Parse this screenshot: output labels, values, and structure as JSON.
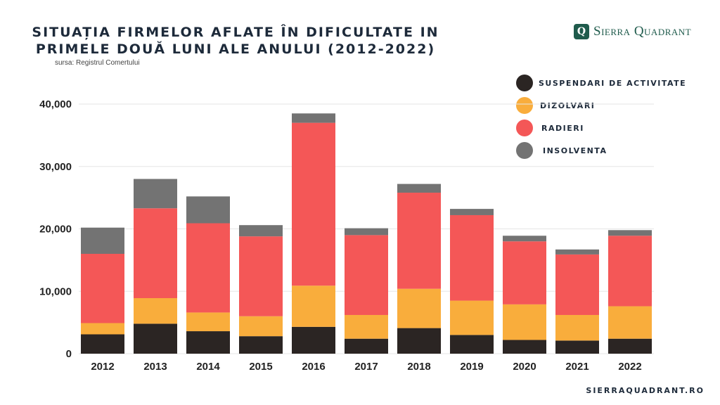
{
  "header": {
    "title_line1": "SITUAȚIA FIRMELOR AFLATE ÎN DIFICULTATE IN",
    "title_line2": "PRIMELE DOUĂ LUNI ALE ANULUI (2012-2022)",
    "source": "sursa: Registrul Comertului"
  },
  "brand": {
    "logo_text": "Sierra Quadrant",
    "logo_mark": "Q",
    "website": "SIERRAQUADRANT.RO",
    "color": "#1f5b4c"
  },
  "chart_data": {
    "type": "bar",
    "stacked": true,
    "categories": [
      "2012",
      "2013",
      "2014",
      "2015",
      "2016",
      "2017",
      "2018",
      "2019",
      "2020",
      "2021",
      "2022"
    ],
    "series": [
      {
        "name": "SUSPENDARI DE ACTIVITATE",
        "color": "#2b2523",
        "values": [
          3100,
          4800,
          3600,
          2800,
          4300,
          2400,
          4100,
          3000,
          2200,
          2100,
          2400
        ]
      },
      {
        "name": "DIZOLVARI",
        "color": "#f9ad3c",
        "values": [
          1800,
          4100,
          3000,
          3200,
          6600,
          3800,
          6300,
          5500,
          5700,
          4100,
          5200
        ]
      },
      {
        "name": "RADIERI",
        "color": "#f45757",
        "values": [
          11100,
          14400,
          14300,
          12800,
          26100,
          12800,
          15400,
          13700,
          10100,
          9700,
          11300
        ]
      },
      {
        "name": "INSOLVENTA",
        "color": "#737373",
        "values": [
          4200,
          4700,
          4300,
          1800,
          1500,
          1100,
          1400,
          1000,
          900,
          800,
          900
        ]
      }
    ],
    "yticks": [
      "0",
      "10,000",
      "20,000",
      "30,000",
      "40,000"
    ],
    "ylim": [
      0,
      40000
    ],
    "grid": true,
    "legend_position": "top-right"
  }
}
